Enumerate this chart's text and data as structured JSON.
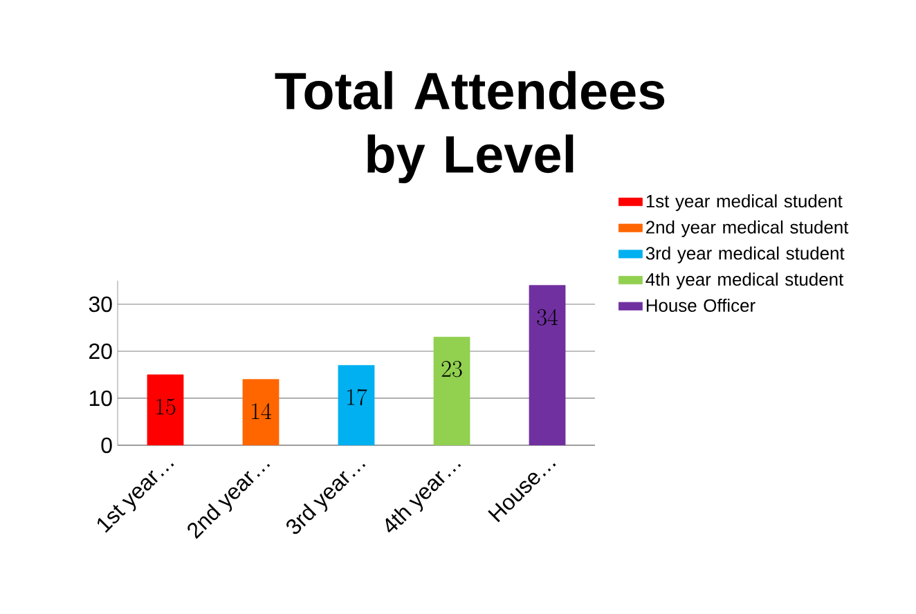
{
  "chart_data": {
    "type": "bar",
    "title": "Total Attendees by Level",
    "categories": [
      "1st year…",
      "2nd year…",
      "3rd year…",
      "4th year…",
      "House…"
    ],
    "series": [
      {
        "name": "1st year medical student",
        "color": "#ff0000",
        "values": [
          15,
          null,
          null,
          null,
          null
        ]
      },
      {
        "name": "2nd year medical student",
        "color": "#ff6600",
        "values": [
          null,
          14,
          null,
          null,
          null
        ]
      },
      {
        "name": "3rd year medical student",
        "color": "#00b0f0",
        "values": [
          null,
          null,
          17,
          null,
          null
        ]
      },
      {
        "name": "4th year medical student",
        "color": "#92d050",
        "values": [
          null,
          null,
          null,
          23,
          null
        ]
      },
      {
        "name": "House Officer",
        "color": "#7030a0",
        "values": [
          null,
          null,
          null,
          null,
          34
        ]
      }
    ],
    "ylim": [
      0,
      35
    ],
    "yticks": [
      0,
      10,
      20,
      30
    ],
    "grid": "y",
    "legend": "right",
    "data_labels": true
  }
}
